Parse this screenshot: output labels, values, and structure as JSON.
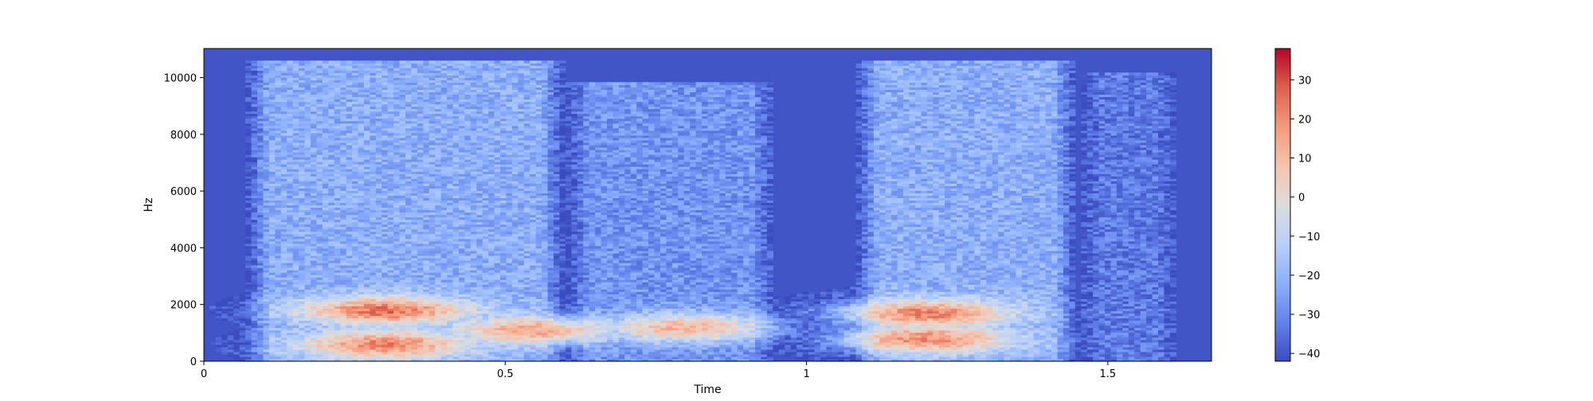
{
  "chart_data": {
    "type": "heatmap",
    "title": "",
    "xlabel": "Time",
    "ylabel": "Hz",
    "xlim": [
      0,
      1.672
    ],
    "ylim": [
      0,
      11025
    ],
    "x_ticks": [
      {
        "value": 0,
        "label": "0"
      },
      {
        "value": 0.5,
        "label": "0.5"
      },
      {
        "value": 1,
        "label": "1"
      },
      {
        "value": 1.5,
        "label": "1.5"
      }
    ],
    "y_ticks": [
      {
        "value": 0,
        "label": "0"
      },
      {
        "value": 2000,
        "label": "2000"
      },
      {
        "value": 4000,
        "label": "4000"
      },
      {
        "value": 6000,
        "label": "6000"
      },
      {
        "value": 8000,
        "label": "8000"
      },
      {
        "value": 10000,
        "label": "10000"
      }
    ],
    "colorbar": {
      "colormap": "coolwarm",
      "range": [
        -42,
        38
      ],
      "ticks": [
        {
          "value": 30,
          "label": "30"
        },
        {
          "value": 20,
          "label": "20"
        },
        {
          "value": 10,
          "label": "10"
        },
        {
          "value": 0,
          "label": "0"
        },
        {
          "value": -10,
          "label": "−10"
        },
        {
          "value": -20,
          "label": "−20"
        },
        {
          "value": -30,
          "label": "−30"
        },
        {
          "value": -40,
          "label": "−40"
        }
      ]
    },
    "grid": false,
    "segments": [
      {
        "t0": 0.07,
        "t1": 0.6,
        "top_hz": 10600,
        "level_db": -22
      },
      {
        "t0": 0.6,
        "t1": 0.95,
        "top_hz": 9800,
        "level_db": -28
      },
      {
        "t0": 1.08,
        "t1": 1.45,
        "top_hz": 10600,
        "level_db": -22
      },
      {
        "t0": 1.45,
        "t1": 1.62,
        "top_hz": 10200,
        "level_db": -33
      }
    ],
    "peaks": [
      {
        "t": 0.3,
        "hz": 1800,
        "db": 25
      },
      {
        "t": 0.3,
        "hz": 600,
        "db": 22
      },
      {
        "t": 0.55,
        "hz": 1100,
        "db": 15
      },
      {
        "t": 0.8,
        "hz": 1200,
        "db": 12
      },
      {
        "t": 1.2,
        "hz": 1700,
        "db": 22
      },
      {
        "t": 1.2,
        "hz": 800,
        "db": 20
      }
    ]
  }
}
